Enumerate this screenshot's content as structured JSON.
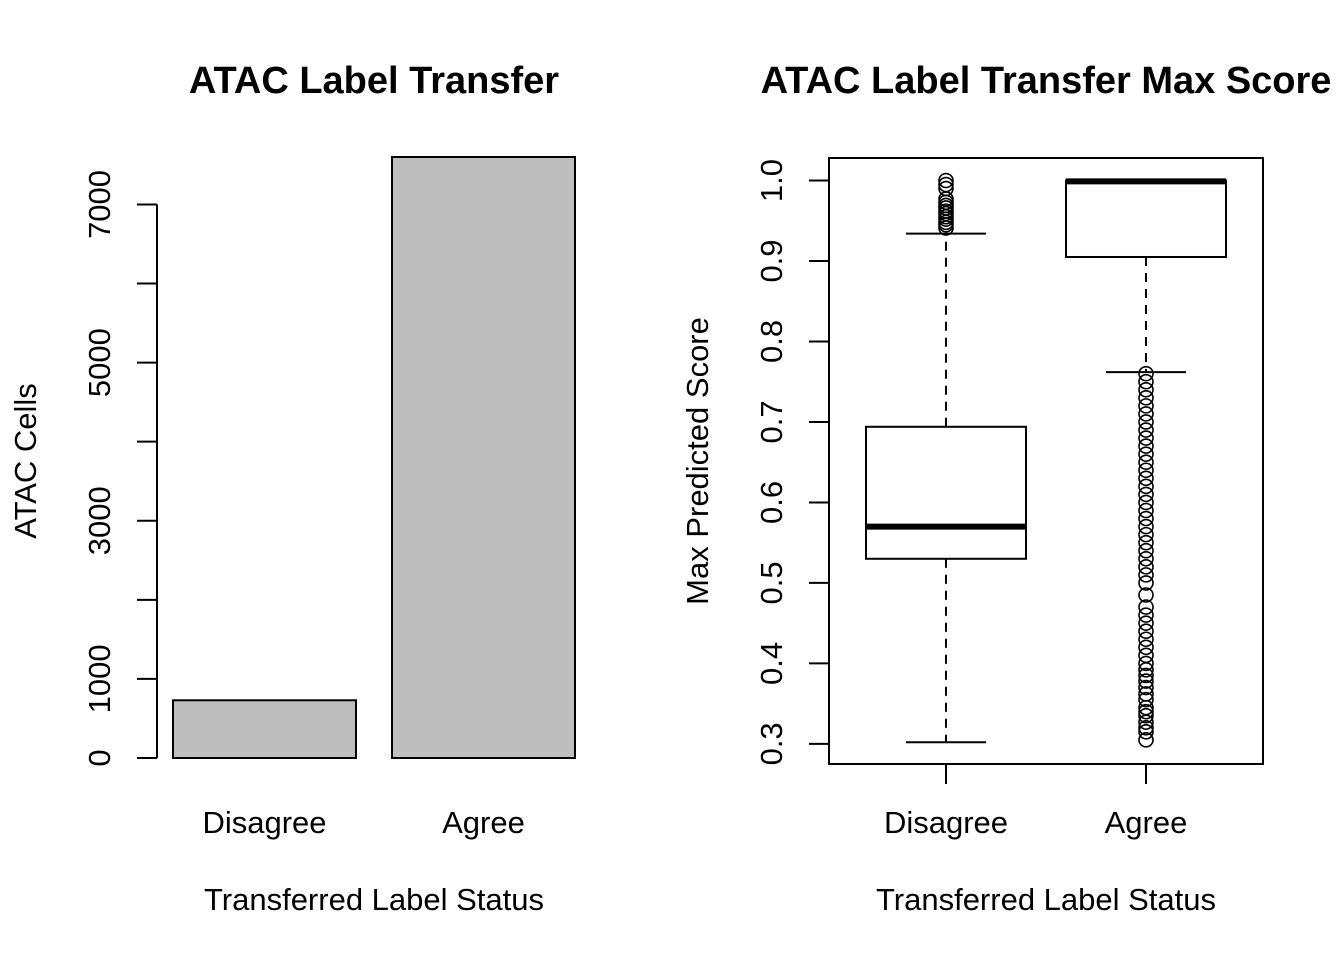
{
  "chart_data": [
    {
      "type": "bar",
      "title": "ATAC Label Transfer",
      "xlabel": "Transferred Label Status",
      "ylabel": "ATAC Cells",
      "categories": [
        "Disagree",
        "Agree"
      ],
      "values": [
        730,
        7600
      ],
      "bar_color": "#bebebe",
      "ylim": [
        0,
        7600
      ],
      "yticks": [
        0,
        1000,
        2000,
        3000,
        4000,
        5000,
        6000,
        7000
      ],
      "ytick_labels": [
        "0",
        "1000",
        "",
        "3000",
        "",
        "5000",
        "",
        "7000"
      ],
      "grid": false
    },
    {
      "type": "boxplot",
      "title": "ATAC Label Transfer Max Score",
      "xlabel": "Transferred Label Status",
      "ylabel": "Max Predicted Score",
      "categories": [
        "Disagree",
        "Agree"
      ],
      "ylim": [
        0.275,
        1.028
      ],
      "yticks": [
        0.3,
        0.4,
        0.5,
        0.6,
        0.7,
        0.8,
        0.9,
        1.0
      ],
      "ytick_labels": [
        "0.3",
        "0.4",
        "0.5",
        "0.6",
        "0.7",
        "0.8",
        "0.9",
        "1.0"
      ],
      "grid": false,
      "boxes": [
        {
          "category": "Disagree",
          "whisker_low": 0.302,
          "q1": 0.53,
          "median": 0.57,
          "q3": 0.694,
          "whisker_high": 0.934,
          "outliers": [
            0.941,
            0.945,
            0.948,
            0.952,
            0.955,
            0.959,
            0.962,
            0.966,
            0.969,
            0.973,
            0.977,
            0.99,
            0.995,
            1.0
          ]
        },
        {
          "category": "Agree",
          "whisker_low": 0.762,
          "q1": 0.905,
          "median": 0.999,
          "q3": 1.0,
          "whisker_high": 1.0,
          "outliers": [
            0.305,
            0.315,
            0.32,
            0.327,
            0.335,
            0.34,
            0.345,
            0.355,
            0.362,
            0.37,
            0.378,
            0.385,
            0.392,
            0.4,
            0.41,
            0.42,
            0.43,
            0.44,
            0.45,
            0.46,
            0.47,
            0.485,
            0.5,
            0.51,
            0.52,
            0.53,
            0.54,
            0.55,
            0.56,
            0.57,
            0.58,
            0.59,
            0.6,
            0.61,
            0.62,
            0.63,
            0.64,
            0.65,
            0.66,
            0.67,
            0.68,
            0.69,
            0.7,
            0.71,
            0.72,
            0.73,
            0.74,
            0.75,
            0.76
          ]
        }
      ]
    }
  ]
}
